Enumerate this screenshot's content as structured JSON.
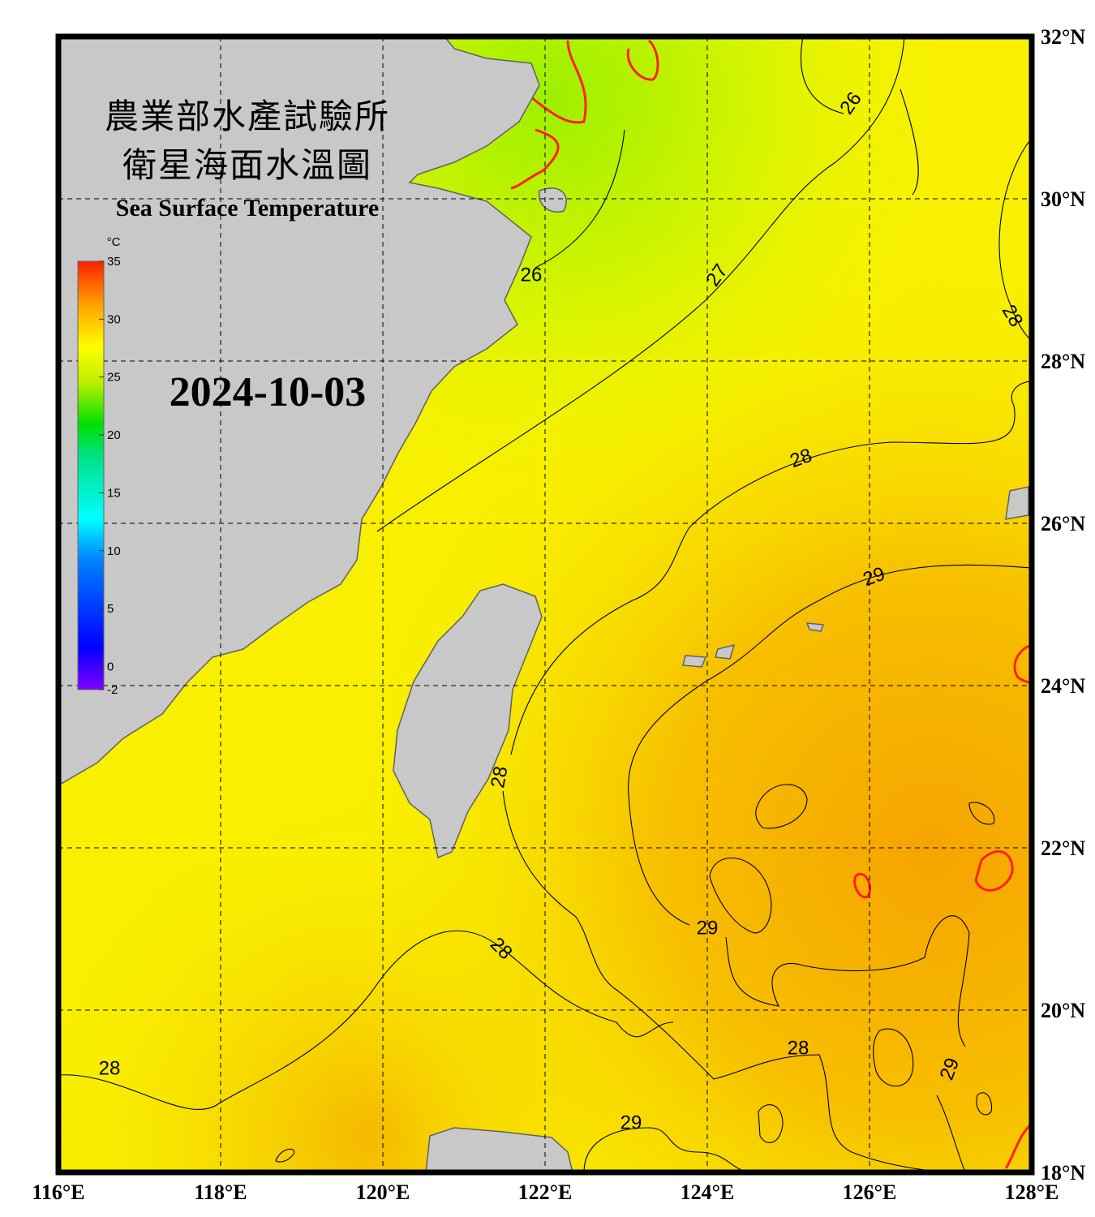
{
  "title": {
    "line1": "農業部水產試驗所",
    "line2": "衛星海面水溫圖",
    "english": "Sea Surface Temperature"
  },
  "date": "2024-10-03",
  "colorbar": {
    "unit": "°C",
    "range": [
      -2,
      35
    ],
    "ticks": [
      35,
      30,
      25,
      20,
      15,
      10,
      5,
      0,
      -2
    ]
  },
  "lon_range": [
    116,
    128
  ],
  "lat_range": [
    18,
    32
  ],
  "lon_ticks": [
    {
      "value": 116,
      "label": "116°E"
    },
    {
      "value": 118,
      "label": "118°E"
    },
    {
      "value": 120,
      "label": "120°E"
    },
    {
      "value": 122,
      "label": "122°E"
    },
    {
      "value": 124,
      "label": "124°E"
    },
    {
      "value": 126,
      "label": "126°E"
    },
    {
      "value": 128,
      "label": "128°E"
    }
  ],
  "lat_ticks": [
    {
      "value": 18,
      "label": "18°N"
    },
    {
      "value": 20,
      "label": "20°N"
    },
    {
      "value": 22,
      "label": "22°N"
    },
    {
      "value": 24,
      "label": "24°N"
    },
    {
      "value": 26,
      "label": "26°N"
    },
    {
      "value": 28,
      "label": "28°N"
    },
    {
      "value": 30,
      "label": "30°N"
    },
    {
      "value": 32,
      "label": "32°N"
    }
  ],
  "contour_labels": [
    "26",
    "26",
    "27",
    "28",
    "28",
    "29",
    "28",
    "29",
    "28",
    "28",
    "28",
    "29",
    "29"
  ]
}
